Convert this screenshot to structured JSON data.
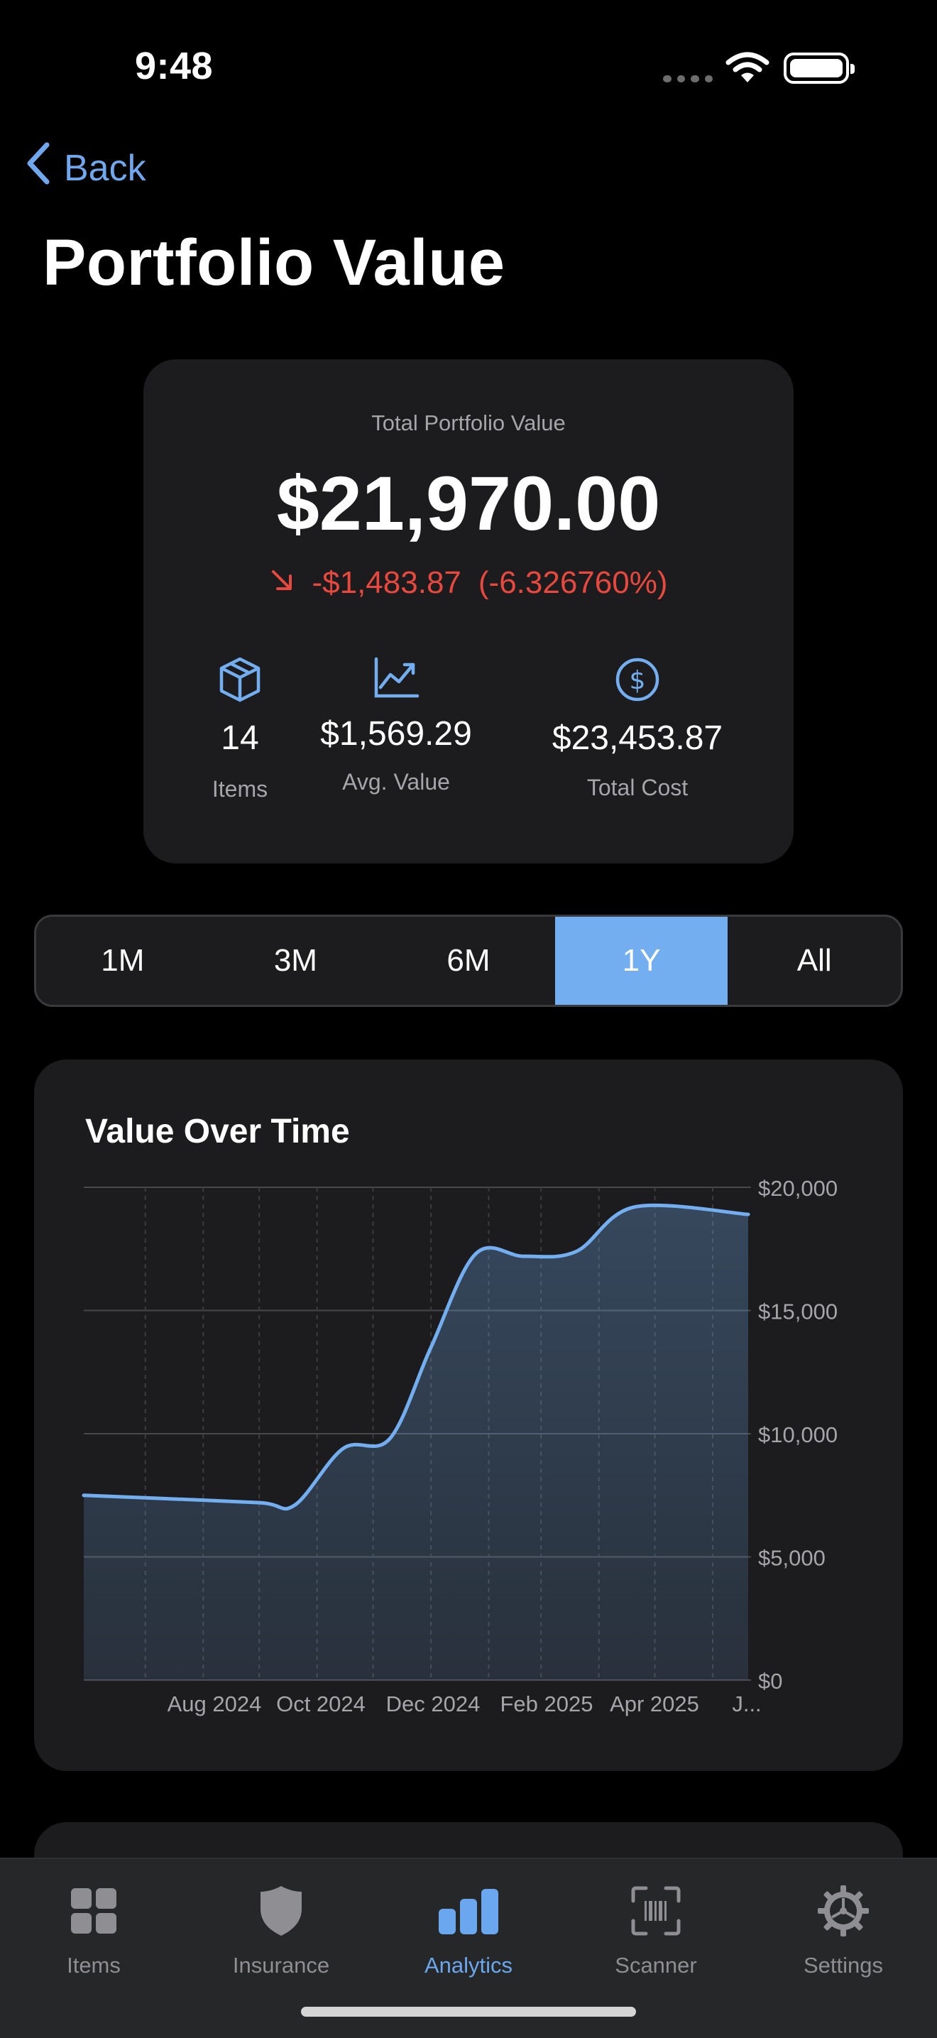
{
  "status_bar": {
    "time": "9:48"
  },
  "nav": {
    "back_label": "Back",
    "title": "Portfolio Value"
  },
  "summary": {
    "caption": "Total Portfolio Value",
    "total_value": "$21,970.00",
    "change_amount": "-$1,483.87",
    "change_percent": "(-6.326760%)",
    "trend": "down",
    "stats": [
      {
        "icon": "cube-icon",
        "value": "14",
        "label": "Items"
      },
      {
        "icon": "trend-up-chart-icon",
        "value": "$1,569.29",
        "label": "Avg. Value"
      },
      {
        "icon": "dollar-circle-icon",
        "value": "$23,453.87",
        "label": "Total Cost"
      }
    ]
  },
  "time_ranges": {
    "options": [
      "1M",
      "3M",
      "6M",
      "1Y",
      "All"
    ],
    "selected": "1Y"
  },
  "chart": {
    "title": "Value Over Time"
  },
  "chart_data": {
    "type": "area",
    "title": "Value Over Time",
    "y_ticks": [
      "$20,000",
      "$15,000",
      "$10,000",
      "$5,000",
      "$0"
    ],
    "x_ticks": [
      "Aug 2024",
      "Oct 2024",
      "Dec 2024",
      "Feb 2025",
      "Apr 2025",
      "J..."
    ],
    "ylim": [
      0,
      20000
    ],
    "grid": true,
    "series": [
      {
        "color": "#73aef0",
        "points": [
          {
            "x": "2024-06-29",
            "y": 7500
          },
          {
            "x": "2024-08-01",
            "y": 7400
          },
          {
            "x": "2024-10-01",
            "y": 7200
          },
          {
            "x": "2024-10-20",
            "y": 7100
          },
          {
            "x": "2024-11-15",
            "y": 9400
          },
          {
            "x": "2024-12-10",
            "y": 9800
          },
          {
            "x": "2025-01-01",
            "y": 13500
          },
          {
            "x": "2025-01-25",
            "y": 17300
          },
          {
            "x": "2025-02-20",
            "y": 17200
          },
          {
            "x": "2025-03-20",
            "y": 17400
          },
          {
            "x": "2025-04-20",
            "y": 19200
          },
          {
            "x": "2025-06-20",
            "y": 18900
          }
        ]
      }
    ]
  },
  "tab_bar": {
    "tabs": [
      {
        "label": "Items",
        "icon": "grid-icon"
      },
      {
        "label": "Insurance",
        "icon": "shield-icon"
      },
      {
        "label": "Analytics",
        "icon": "bar-chart-icon"
      },
      {
        "label": "Scanner",
        "icon": "barcode-scanner-icon"
      },
      {
        "label": "Settings",
        "icon": "gear-icon"
      }
    ],
    "active": "Analytics"
  },
  "colors": {
    "accent": "#73aef0",
    "negative": "#e8483d",
    "card": "#1c1c1e",
    "background": "#000000"
  }
}
